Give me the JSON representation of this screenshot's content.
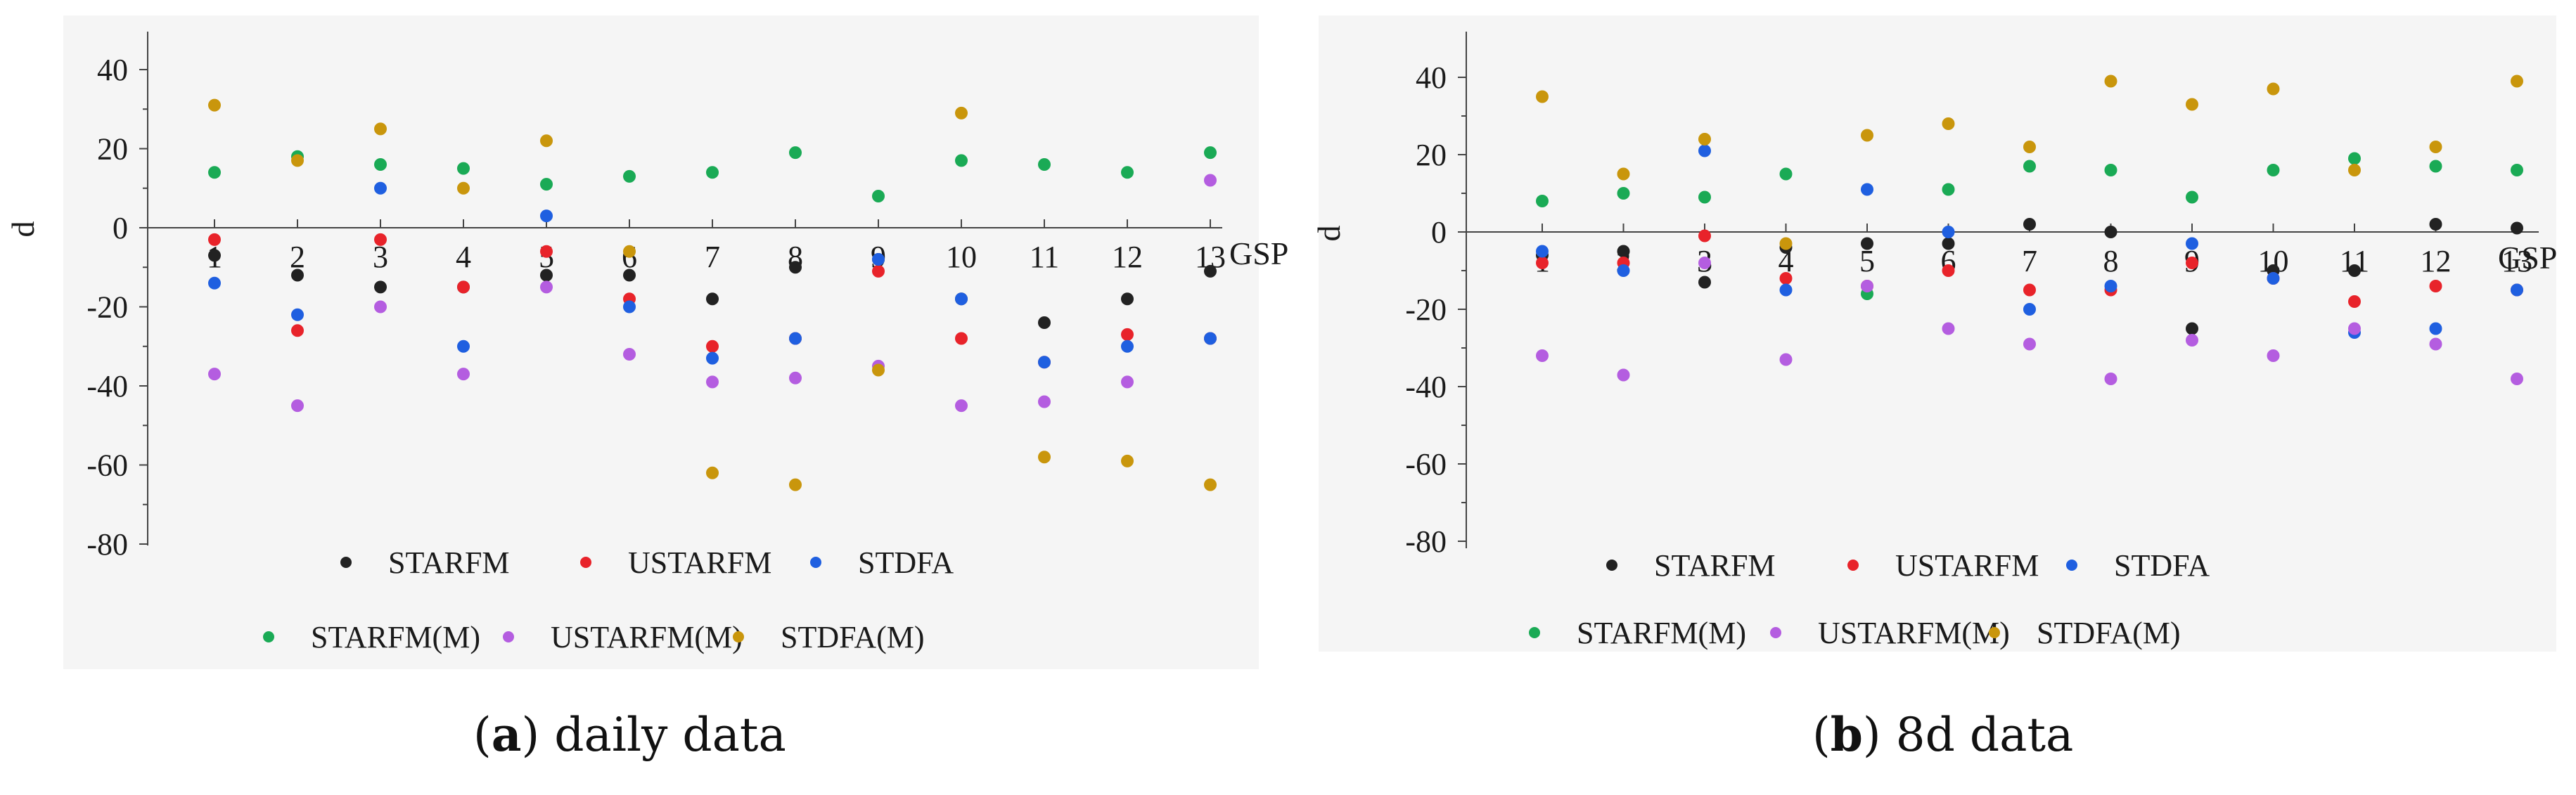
{
  "chart_data": [
    {
      "type": "scatter",
      "panel_label": "a",
      "caption": "daily data",
      "xlabel": "GSP",
      "ylabel": "d",
      "ylim": [
        -80,
        50
      ],
      "yticks": [
        40,
        20,
        0,
        -20,
        -40,
        -60,
        -80
      ],
      "x": [
        1,
        2,
        3,
        4,
        5,
        6,
        7,
        8,
        9,
        10,
        11,
        12,
        13
      ],
      "xtick_labels": [
        "1",
        "2",
        "3",
        "4",
        "5",
        "6",
        "7",
        "8",
        "9",
        "10",
        "11",
        "12",
        "13"
      ],
      "series": [
        {
          "name": "STARFM",
          "color": "#222222",
          "values": [
            -7,
            -12,
            -15,
            -15,
            -12,
            -12,
            -18,
            -10,
            -8,
            -18,
            -24,
            -18,
            -11
          ]
        },
        {
          "name": "USTARFM",
          "color": "#e8232a",
          "values": [
            -3,
            -26,
            -3,
            -15,
            -6,
            -18,
            -30,
            -28,
            -11,
            -28,
            -34,
            -27,
            -28
          ]
        },
        {
          "name": "STDFA",
          "color": "#1f5fe0",
          "values": [
            -14,
            -22,
            10,
            -30,
            3,
            -20,
            -33,
            -28,
            -8,
            -18,
            -34,
            -30,
            -28
          ]
        },
        {
          "name": "STARFM(M)",
          "color": "#1aaa55",
          "values": [
            14,
            18,
            16,
            15,
            11,
            13,
            14,
            19,
            8,
            17,
            16,
            14,
            19
          ]
        },
        {
          "name": "USTARFM(M)",
          "color": "#b45de0",
          "values": [
            -37,
            -45,
            -20,
            -37,
            -15,
            -32,
            -39,
            -38,
            -35,
            -45,
            -44,
            -39,
            12
          ]
        },
        {
          "name": "STDFA(M)",
          "color": "#c9960c",
          "values": [
            31,
            17,
            25,
            10,
            22,
            -6,
            -62,
            -65,
            -36,
            29,
            -58,
            -59,
            -65
          ]
        }
      ]
    },
    {
      "type": "scatter",
      "panel_label": "b",
      "caption": "8d data",
      "xlabel": "GSP",
      "ylabel": "d",
      "ylim": [
        -80,
        50
      ],
      "yticks": [
        40,
        20,
        0,
        -20,
        -40,
        -60,
        -80
      ],
      "x": [
        1,
        2,
        3,
        4,
        5,
        6,
        7,
        8,
        9,
        10,
        11,
        12,
        13
      ],
      "xtick_labels": [
        "1",
        "2",
        "3",
        "4",
        "5",
        "6",
        "7",
        "8",
        "9",
        "10",
        "11",
        "12",
        "13"
      ],
      "series": [
        {
          "name": "STARFM",
          "color": "#222222",
          "values": [
            -6,
            -5,
            -13,
            -4,
            -3,
            -3,
            2,
            0,
            -25,
            -10,
            -10,
            2,
            1
          ]
        },
        {
          "name": "USTARFM",
          "color": "#e8232a",
          "values": [
            -8,
            -8,
            -1,
            -12,
            -14,
            -10,
            -15,
            -15,
            -8,
            -12,
            -18,
            -14,
            -15
          ]
        },
        {
          "name": "STDFA",
          "color": "#1f5fe0",
          "values": [
            -5,
            -10,
            21,
            -15,
            11,
            0,
            -20,
            -14,
            -3,
            -12,
            -26,
            -25,
            -15
          ]
        },
        {
          "name": "STARFM(M)",
          "color": "#1aaa55",
          "values": [
            8,
            10,
            9,
            15,
            -16,
            11,
            17,
            16,
            9,
            16,
            19,
            17,
            16
          ]
        },
        {
          "name": "USTARFM(M)",
          "color": "#b45de0",
          "values": [
            -32,
            -37,
            -8,
            -33,
            -14,
            -25,
            -29,
            -38,
            -28,
            -32,
            -25,
            -29,
            -38
          ]
        },
        {
          "name": "STDFA(M)",
          "color": "#c9960c",
          "values": [
            35,
            15,
            24,
            -3,
            25,
            28,
            22,
            39,
            33,
            37,
            16,
            22,
            39
          ]
        }
      ]
    }
  ]
}
